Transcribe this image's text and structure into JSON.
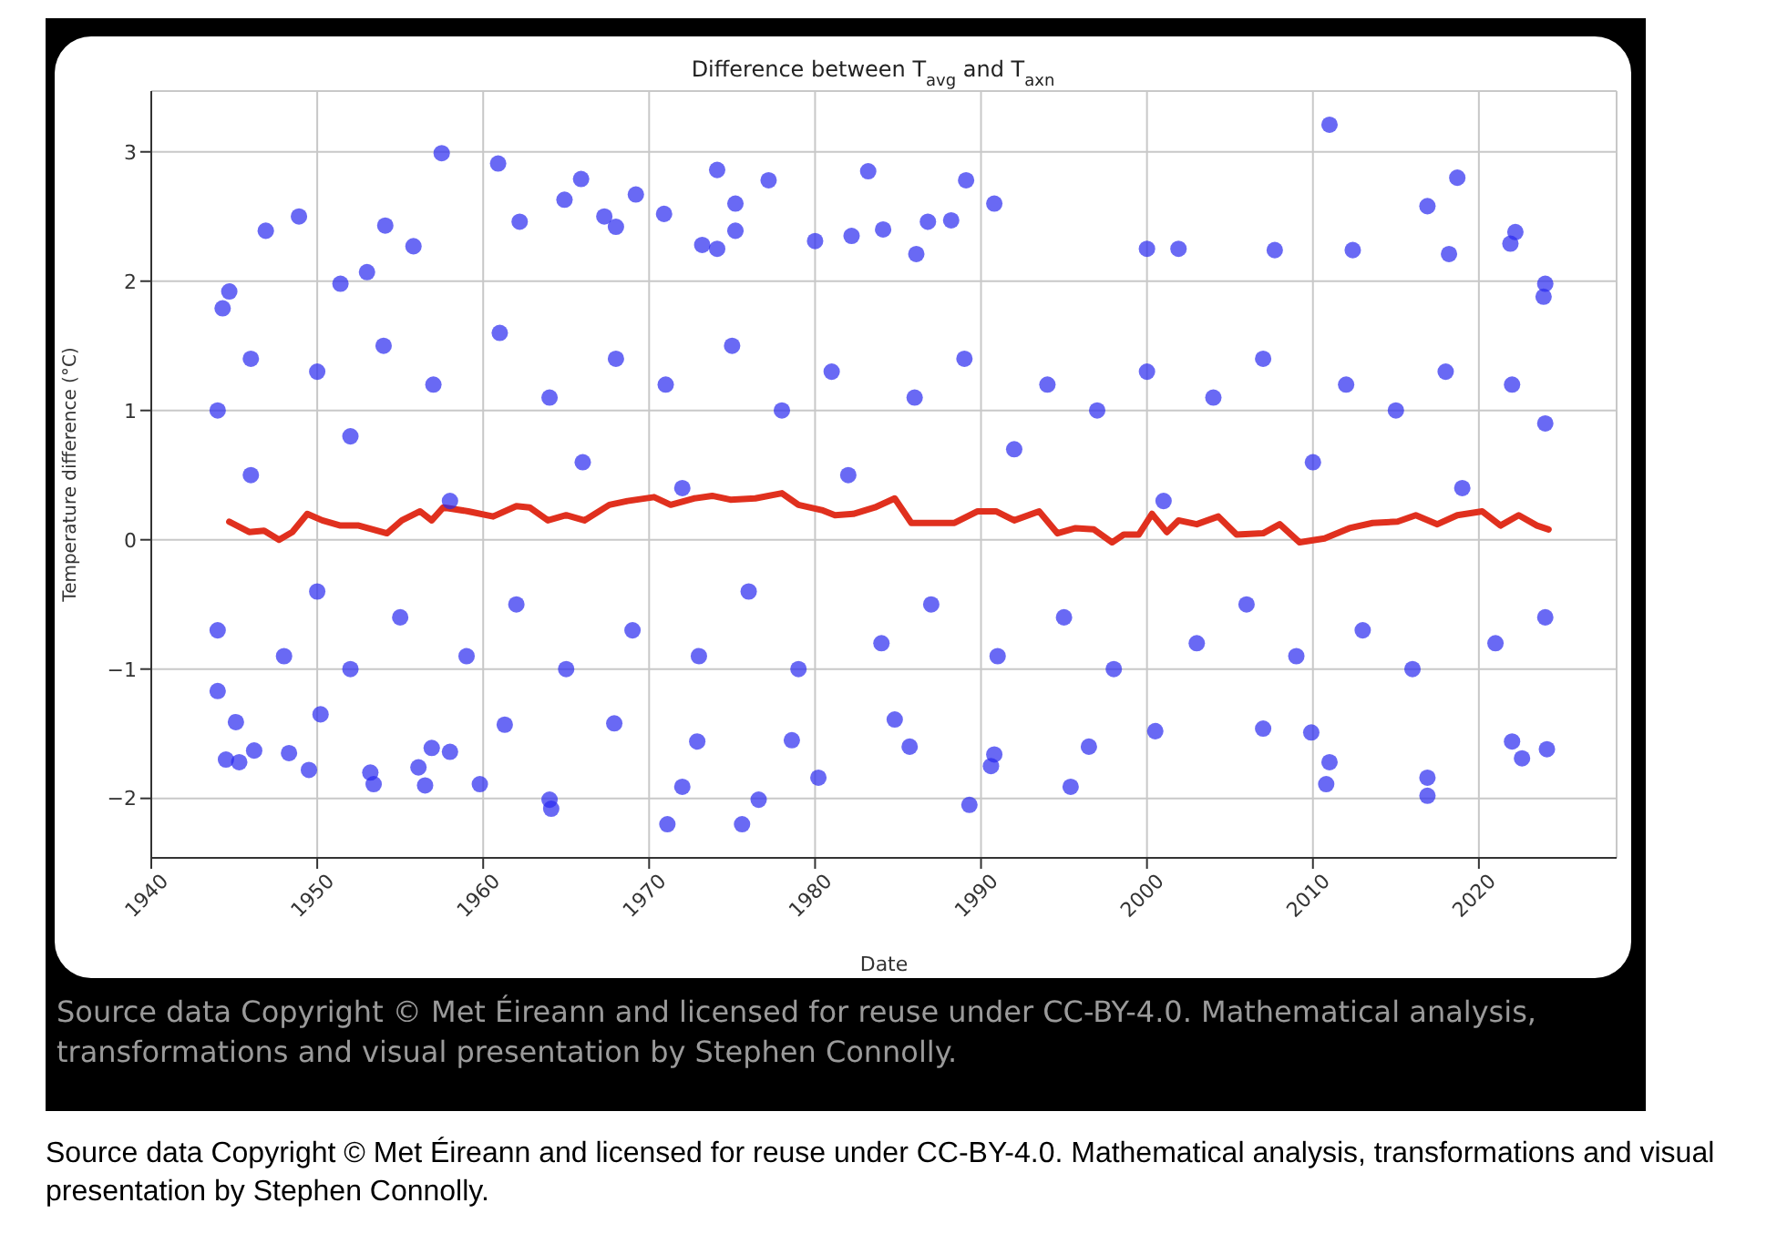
{
  "chart_data": {
    "type": "scatter",
    "title": "Difference between T$_{avg}$ and T$_{axn}$",
    "xlabel": "Date",
    "ylabel": "Temperature difference (°C)",
    "xlim": [
      1940,
      2028.3
    ],
    "xticks": [
      1940,
      1950,
      1960,
      1970,
      1980,
      1990,
      2000,
      2010,
      2020
    ],
    "ylim": [
      -2.46,
      3.47
    ],
    "yticks": [
      -2,
      -1,
      0,
      1,
      2,
      3
    ],
    "grid": true,
    "legend": false,
    "series": [
      {
        "marker": "circle",
        "color": "#2a2af0",
        "x": [
          1957.5,
          1960.9,
          1965.9,
          1974.1,
          1977.2,
          1983.2,
          1969.2,
          1964.9,
          1975.2,
          1946.9,
          1948.9,
          1954.1,
          1962.2,
          1970.9,
          1975.2,
          1967.3,
          1968.0,
          1955.8,
          1973.2,
          1974.1,
          1980.0,
          1982.2,
          1944.3,
          1944.7,
          1953.0,
          1951.4,
          2011.0,
          1989.1,
          1990.8,
          2018.7,
          2016.9,
          2022.2,
          2021.9,
          1986.8,
          1988.2,
          1984.1,
          1986.1,
          2000.0,
          2001.9,
          2007.7,
          2012.4,
          2018.2,
          2023.9,
          2024.0,
          1944.5,
          1945.3,
          1946.2,
          1948.3,
          1949.5,
          1953.2,
          1953.4,
          1956.1,
          1956.5,
          1959.8,
          1964.0,
          1964.1,
          1971.1,
          1972.0,
          1975.6,
          1976.6,
          1980.2,
          1944.0,
          1945.1,
          1950.2,
          1956.9,
          1958.0,
          1961.3,
          1967.9,
          1972.9,
          1978.6,
          1989.3,
          1995.4,
          2010.8,
          2011.0,
          2016.9,
          2016.9,
          1985.7,
          1990.6,
          1990.8,
          1996.5,
          2000.5,
          2022.6,
          2022.0,
          2024.1,
          1984.8,
          2007.0,
          2009.9,
          1944,
          1944,
          1946,
          1946,
          1948,
          1950,
          1950,
          1952,
          1952,
          1954,
          1955,
          1957,
          1958,
          1959,
          1961,
          1962,
          1964,
          1965,
          1966,
          1968,
          1969,
          1971,
          1972,
          1973,
          1975,
          1976,
          1978,
          1979,
          1981,
          1982,
          1984,
          1986,
          1987,
          1989,
          1991,
          1992,
          1994,
          1995,
          1997,
          1998,
          2000,
          2001,
          2003,
          2004,
          2006,
          2007,
          2009,
          2010,
          2012,
          2013,
          2015,
          2016,
          2018,
          2019,
          2021,
          2022,
          2024,
          2024
        ],
        "values": [
          2.99,
          2.91,
          2.79,
          2.86,
          2.78,
          2.85,
          2.67,
          2.63,
          2.6,
          2.39,
          2.5,
          2.43,
          2.46,
          2.52,
          2.39,
          2.5,
          2.42,
          2.27,
          2.28,
          2.25,
          2.31,
          2.35,
          1.79,
          1.92,
          2.07,
          1.98,
          3.21,
          2.78,
          2.6,
          2.8,
          2.58,
          2.38,
          2.29,
          2.46,
          2.47,
          2.4,
          2.21,
          2.25,
          2.25,
          2.24,
          2.24,
          2.21,
          1.88,
          1.98,
          -1.7,
          -1.72,
          -1.63,
          -1.65,
          -1.78,
          -1.8,
          -1.89,
          -1.76,
          -1.9,
          -1.89,
          -2.01,
          -2.08,
          -2.2,
          -1.91,
          -2.2,
          -2.01,
          -1.84,
          -1.17,
          -1.41,
          -1.35,
          -1.61,
          -1.64,
          -1.43,
          -1.42,
          -1.56,
          -1.55,
          -2.05,
          -1.91,
          -1.89,
          -1.72,
          -1.98,
          -1.84,
          -1.6,
          -1.75,
          -1.66,
          -1.6,
          -1.48,
          -1.69,
          -1.56,
          -1.62,
          -1.39,
          -1.46,
          -1.49,
          1.0,
          -0.7,
          1.4,
          0.5,
          -0.9,
          1.3,
          -0.4,
          0.8,
          -1.0,
          1.5,
          -0.6,
          1.2,
          0.3,
          -0.9,
          1.6,
          -0.5,
          1.1,
          -1.0,
          0.6,
          1.4,
          -0.7,
          1.2,
          0.4,
          -0.9,
          1.5,
          -0.4,
          1.0,
          -1.0,
          1.3,
          0.5,
          -0.8,
          1.1,
          -0.5,
          1.4,
          -0.9,
          0.7,
          1.2,
          -0.6,
          1.0,
          -1.0,
          1.3,
          0.3,
          -0.8,
          1.1,
          -0.5,
          1.4,
          -0.9,
          0.6,
          1.2,
          -0.7,
          1.0,
          -1.0,
          1.3,
          0.4,
          -0.8,
          1.2,
          -0.6,
          0.9
        ]
      },
      {
        "type": "line",
        "marker": "none",
        "line_style": "solid",
        "color": "#e0301e",
        "x": [
          1944.7,
          1945.9,
          1946.8,
          1947.7,
          1948.5,
          1949.4,
          1950.3,
          1951.4,
          1952.5,
          1954.2,
          1955.1,
          1956.2,
          1956.9,
          1957.6,
          1959.1,
          1960.6,
          1962.0,
          1962.8,
          1963.9,
          1965.0,
          1966.1,
          1967.6,
          1968.7,
          1970.3,
          1971.3,
          1972.7,
          1973.8,
          1974.9,
          1976.4,
          1978.0,
          1979.0,
          1980.4,
          1981.2,
          1982.3,
          1983.6,
          1984.8,
          1985.8,
          1987.3,
          1988.4,
          1989.8,
          1990.9,
          1992.0,
          1993.5,
          1994.6,
          1995.7,
          1996.8,
          1997.9,
          1998.6,
          1999.5,
          2000.3,
          2001.2,
          2001.9,
          2003.0,
          2004.3,
          2005.4,
          2007.0,
          2008.0,
          2009.2,
          2010.7,
          2012.2,
          2013.6,
          2015.1,
          2016.2,
          2017.5,
          2018.7,
          2020.2,
          2021.3,
          2022.4,
          2023.5,
          2024.2
        ],
        "values": [
          0.14,
          0.06,
          0.07,
          0.0,
          0.06,
          0.2,
          0.15,
          0.11,
          0.11,
          0.05,
          0.15,
          0.22,
          0.15,
          0.25,
          0.22,
          0.18,
          0.26,
          0.25,
          0.15,
          0.19,
          0.15,
          0.27,
          0.3,
          0.33,
          0.27,
          0.32,
          0.34,
          0.31,
          0.32,
          0.36,
          0.27,
          0.23,
          0.19,
          0.2,
          0.25,
          0.32,
          0.13,
          0.13,
          0.13,
          0.22,
          0.22,
          0.15,
          0.22,
          0.05,
          0.09,
          0.08,
          -0.02,
          0.04,
          0.04,
          0.2,
          0.06,
          0.15,
          0.12,
          0.18,
          0.04,
          0.05,
          0.12,
          -0.02,
          0.01,
          0.09,
          0.13,
          0.14,
          0.19,
          0.12,
          0.19,
          0.22,
          0.11,
          0.19,
          0.11,
          0.08
        ]
      }
    ],
    "annotations": [
      "Source data Copyright © Met Éireann and licensed for reuse under CC-BY-4.0. Mathematical analysis, transformations and visual presentation by Stephen Connolly.",
      "Source data Copyright © Met Éireann and licensed for reuse under CC-BY-4.0. Mathematical analysis, transformations and visual presentation by Stephen Connolly."
    ]
  }
}
